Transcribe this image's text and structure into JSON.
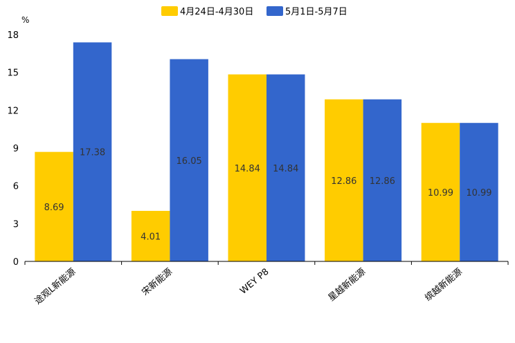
{
  "chart_data": {
    "type": "bar",
    "title": "",
    "xlabel": "",
    "ylabel": "%",
    "ylim": [
      0,
      18
    ],
    "yticks": [
      0,
      3,
      6,
      9,
      12,
      15,
      18
    ],
    "grid": false,
    "legend_position": "top-center",
    "categories": [
      "途观L新能源",
      "宋新能源",
      "WEY P8",
      "星越新能源",
      "缤越新能源"
    ],
    "series": [
      {
        "name": "4月24日-4月30日",
        "color": "#ffcc00",
        "values": [
          8.69,
          4.01,
          14.84,
          12.86,
          10.99
        ]
      },
      {
        "name": "5月1日-5月7日",
        "color": "#3366cc",
        "values": [
          17.38,
          16.05,
          14.84,
          12.86,
          10.99
        ]
      }
    ]
  }
}
